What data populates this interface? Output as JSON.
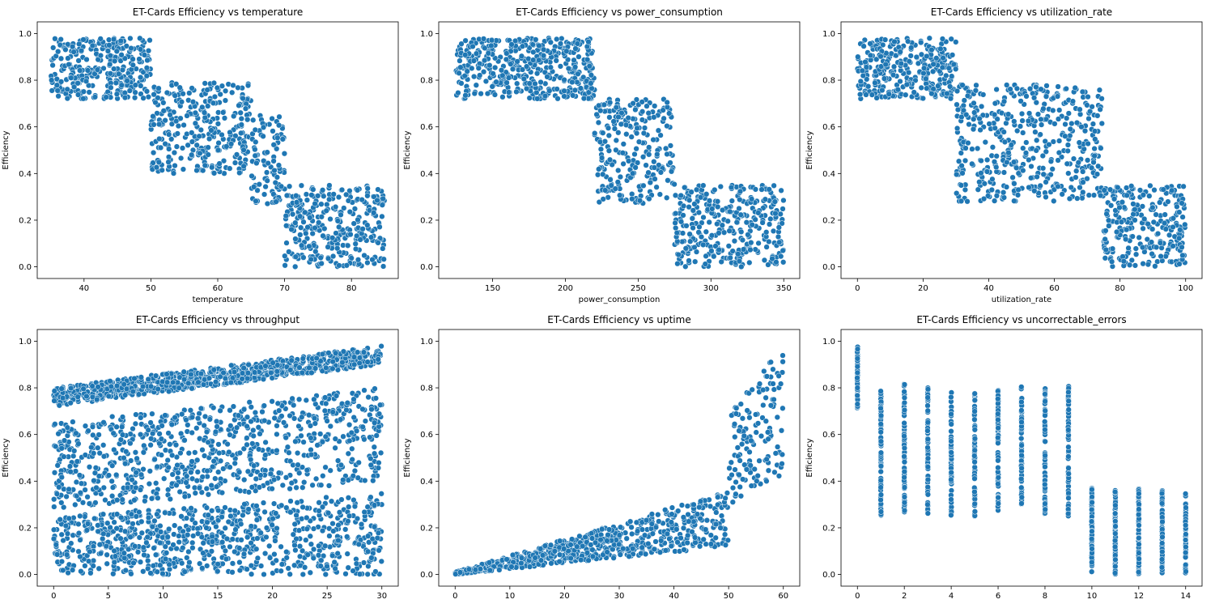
{
  "chart_data": [
    {
      "type": "scatter",
      "title": "ET-Cards Efficiency vs temperature",
      "xlabel": "temperature",
      "ylabel": "Efficiency",
      "xlim": [
        33,
        87
      ],
      "ylim": [
        -0.05,
        1.05
      ],
      "xticks": [
        40,
        50,
        60,
        70,
        80
      ],
      "yticks": [
        0.0,
        0.2,
        0.4,
        0.6,
        0.8,
        1.0
      ],
      "marker_color": "#1f77b4",
      "pattern": "step",
      "segments": [
        {
          "x": [
            35,
            50
          ],
          "y": [
            0.72,
            0.98
          ]
        },
        {
          "x": [
            50,
            65
          ],
          "y": [
            0.4,
            0.8
          ]
        },
        {
          "x": [
            65,
            70
          ],
          "y": [
            0.27,
            0.65
          ]
        },
        {
          "x": [
            70,
            85
          ],
          "y": [
            0.0,
            0.35
          ]
        }
      ]
    },
    {
      "type": "scatter",
      "title": "ET-Cards Efficiency vs power_consumption",
      "xlabel": "power_consumption",
      "ylabel": "Efficiency",
      "xlim": [
        113,
        361
      ],
      "ylim": [
        -0.05,
        1.05
      ],
      "xticks": [
        150,
        200,
        250,
        300,
        350
      ],
      "yticks": [
        0.0,
        0.2,
        0.4,
        0.6,
        0.8,
        1.0
      ],
      "marker_color": "#1f77b4",
      "pattern": "step",
      "segments": [
        {
          "x": [
            125,
            220
          ],
          "y": [
            0.72,
            0.98
          ]
        },
        {
          "x": [
            220,
            275
          ],
          "y": [
            0.27,
            0.72
          ]
        },
        {
          "x": [
            275,
            350
          ],
          "y": [
            0.0,
            0.35
          ]
        }
      ]
    },
    {
      "type": "scatter",
      "title": "ET-Cards Efficiency vs utilization_rate",
      "xlabel": "utilization_rate",
      "ylabel": "Efficiency",
      "xlim": [
        -5,
        105
      ],
      "ylim": [
        -0.05,
        1.05
      ],
      "xticks": [
        0,
        20,
        40,
        60,
        80,
        100
      ],
      "yticks": [
        0.0,
        0.2,
        0.4,
        0.6,
        0.8,
        1.0
      ],
      "marker_color": "#1f77b4",
      "pattern": "step",
      "segments": [
        {
          "x": [
            0,
            30
          ],
          "y": [
            0.72,
            0.98
          ]
        },
        {
          "x": [
            30,
            75
          ],
          "y": [
            0.28,
            0.78
          ]
        },
        {
          "x": [
            75,
            100
          ],
          "y": [
            0.0,
            0.35
          ]
        }
      ]
    },
    {
      "type": "scatter",
      "title": "ET-Cards Efficiency vs throughput",
      "xlabel": "",
      "ylabel": "Efficiency",
      "xlim": [
        -1.5,
        31.5
      ],
      "ylim": [
        -0.05,
        1.05
      ],
      "xticks": [
        0,
        5,
        10,
        15,
        20,
        25,
        30
      ],
      "yticks": [
        0.0,
        0.2,
        0.4,
        0.6,
        0.8,
        1.0
      ],
      "marker_color": "#1f77b4",
      "pattern": "bands",
      "bands": [
        {
          "x": [
            0,
            30
          ],
          "y_low": [
            0.72,
            0.9
          ],
          "y_high": [
            0.8,
            0.98
          ]
        },
        {
          "x": [
            0,
            30
          ],
          "y_low": [
            0.28,
            0.4
          ],
          "y_high": [
            0.65,
            0.8
          ]
        },
        {
          "x": [
            0,
            30
          ],
          "y_low": [
            0.0,
            0.0
          ],
          "y_high": [
            0.25,
            0.35
          ]
        }
      ]
    },
    {
      "type": "scatter",
      "title": "ET-Cards Efficiency vs uptime",
      "xlabel": "",
      "ylabel": "Efficiency",
      "xlim": [
        -3,
        63
      ],
      "ylim": [
        -0.05,
        1.05
      ],
      "xticks": [
        0,
        10,
        20,
        30,
        40,
        50,
        60
      ],
      "yticks": [
        0.0,
        0.2,
        0.4,
        0.6,
        0.8,
        1.0
      ],
      "marker_color": "#1f77b4",
      "pattern": "bands",
      "bands": [
        {
          "x": [
            0,
            50
          ],
          "y_low": [
            0.0,
            0.12
          ],
          "y_high": [
            0.01,
            0.36
          ]
        },
        {
          "x": [
            50,
            60
          ],
          "y_low": [
            0.3,
            0.4
          ],
          "y_high": [
            0.68,
            0.99
          ]
        }
      ]
    },
    {
      "type": "scatter",
      "title": "ET-Cards Efficiency vs uncorrectable_errors",
      "xlabel": "",
      "ylabel": "Efficiency",
      "xlim": [
        -0.7,
        14.7
      ],
      "ylim": [
        -0.05,
        1.05
      ],
      "xticks": [
        0,
        2,
        4,
        6,
        8,
        10,
        12,
        14
      ],
      "yticks": [
        0.0,
        0.2,
        0.4,
        0.6,
        0.8,
        1.0
      ],
      "marker_color": "#1f77b4",
      "pattern": "columns",
      "columns": [
        {
          "x": 0,
          "y": [
            0.71,
            0.99
          ]
        },
        {
          "x": 1,
          "y": [
            0.25,
            0.8
          ]
        },
        {
          "x": 2,
          "y": [
            0.26,
            0.82
          ]
        },
        {
          "x": 3,
          "y": [
            0.26,
            0.8
          ]
        },
        {
          "x": 4,
          "y": [
            0.25,
            0.8
          ]
        },
        {
          "x": 5,
          "y": [
            0.24,
            0.78
          ]
        },
        {
          "x": 6,
          "y": [
            0.26,
            0.79
          ]
        },
        {
          "x": 7,
          "y": [
            0.26,
            0.81
          ]
        },
        {
          "x": 8,
          "y": [
            0.25,
            0.8
          ]
        },
        {
          "x": 9,
          "y": [
            0.25,
            0.81
          ]
        },
        {
          "x": 10,
          "y": [
            0.0,
            0.37
          ]
        },
        {
          "x": 11,
          "y": [
            0.0,
            0.36
          ]
        },
        {
          "x": 12,
          "y": [
            0.0,
            0.37
          ]
        },
        {
          "x": 13,
          "y": [
            0.0,
            0.37
          ]
        },
        {
          "x": 14,
          "y": [
            0.0,
            0.36
          ]
        }
      ]
    }
  ]
}
